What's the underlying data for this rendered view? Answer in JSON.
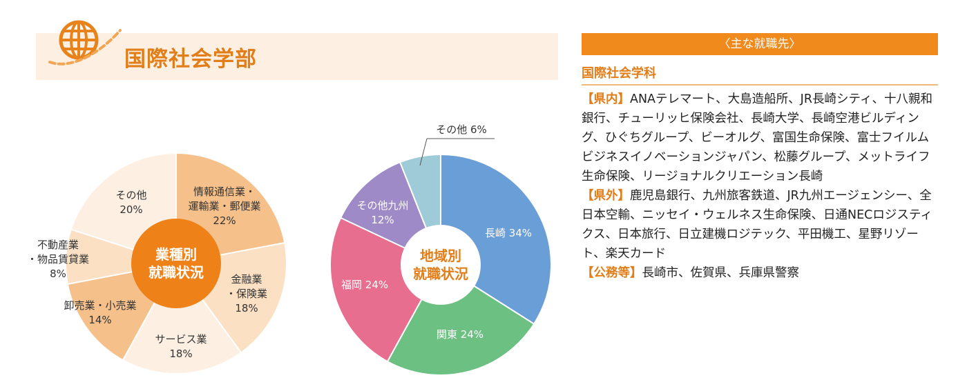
{
  "header": {
    "title": "国際社会学部"
  },
  "chart_data": [
    {
      "type": "pie",
      "center_label": [
        "業種別",
        "就職状況"
      ],
      "slices": [
        {
          "label": [
            "情報通信業・",
            "運輸業・郵便業"
          ],
          "value": 22,
          "display": "22%",
          "color": "#f6c08b"
        },
        {
          "label": [
            "金融業",
            "・保険業"
          ],
          "value": 18,
          "display": "18%",
          "color": "#fbe0c4"
        },
        {
          "label": [
            "サービス業"
          ],
          "value": 18,
          "display": "18%",
          "color": "#fdf0e3"
        },
        {
          "label": [
            "卸売業・小売業"
          ],
          "value": 14,
          "display": "14%",
          "color": "#f6c08b"
        },
        {
          "label": [
            "不動産業",
            "・物品賃貸業"
          ],
          "value": 8,
          "display": "8%",
          "color": "#fbe0c4"
        },
        {
          "label": [
            "その他"
          ],
          "value": 20,
          "display": "20%",
          "color": "#fdf0e3"
        }
      ]
    },
    {
      "type": "pie",
      "center_label": [
        "地域別",
        "就職状況"
      ],
      "slices": [
        {
          "label": "長崎",
          "value": 34,
          "display": "34%",
          "color": "#6a9ed6"
        },
        {
          "label": "関東",
          "value": 24,
          "display": "24%",
          "color": "#6cc081"
        },
        {
          "label": "福岡",
          "value": 24,
          "display": "24%",
          "color": "#e86e8f"
        },
        {
          "label": "その他九州",
          "value": 12,
          "display": "12%",
          "color": "#9e8ac7"
        },
        {
          "label": "その他",
          "value": 6,
          "display": "6%",
          "color": "#9fcbd8"
        }
      ]
    }
  ],
  "jobs": {
    "header": "〈主な就職先〉",
    "department": "国際社会学科",
    "entries": [
      {
        "tag": "【県内】",
        "text": "ANAテレマート、大島造船所、JR長崎シティ、十八親和銀行、チューリッヒ保険会社、長崎大学、長崎空港ビルディング、ひぐちグループ、ビーオルグ、富国生命保険、富士フイルムビジネスイノベーションジャパン、松藤グループ、メットライフ生命保険、リージョナルクリエーション長崎"
      },
      {
        "tag": "【県外】",
        "text": "鹿児島銀行、九州旅客鉄道、JR九州エージェンシー、全日本空輸、ニッセイ・ウェルネス生命保険、日通NECロジスティクス、日本旅行、日立建機ロジテック、平田機工、星野リゾート、楽天カード"
      },
      {
        "tag": "【公務等】",
        "text": "長崎市、佐賀県、兵庫県警察"
      }
    ]
  }
}
